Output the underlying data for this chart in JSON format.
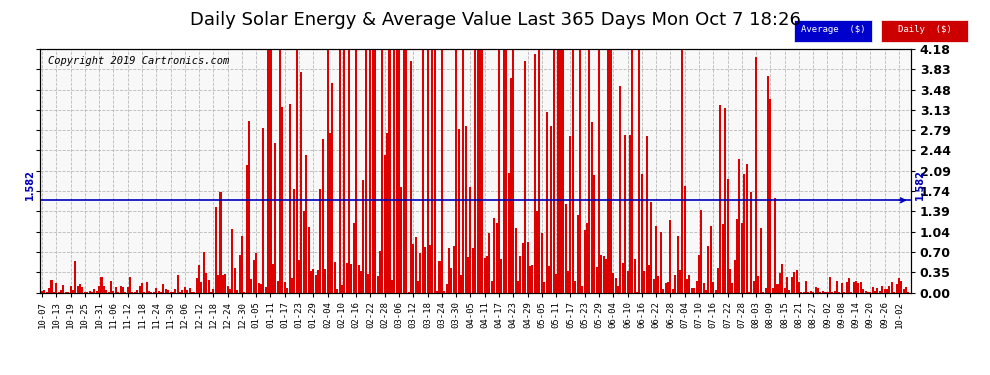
{
  "title": "Daily Solar Energy & Average Value Last 365 Days Mon Oct 7 18:26",
  "copyright": "Copyright 2019 Cartronics.com",
  "average_value": 1.582,
  "ylim": [
    0.0,
    4.18
  ],
  "yticks": [
    0.0,
    0.35,
    0.7,
    1.04,
    1.39,
    1.74,
    2.09,
    2.44,
    2.79,
    3.13,
    3.48,
    3.83,
    4.18
  ],
  "bar_color": "#dd0000",
  "avg_line_color": "#0000bb",
  "bg_color": "#ffffff",
  "plot_bg_color": "#f8f8f8",
  "grid_color": "#aaaaaa",
  "legend_avg_bg": "#0000cc",
  "legend_daily_bg": "#cc0000",
  "title_fontsize": 13,
  "copyright_fontsize": 7.5,
  "bar_width": 0.85,
  "xtick_labels": [
    "10-07",
    "10-13",
    "10-19",
    "10-25",
    "10-31",
    "11-06",
    "11-12",
    "11-18",
    "11-24",
    "11-30",
    "12-06",
    "12-12",
    "12-18",
    "12-24",
    "12-30",
    "01-05",
    "01-11",
    "01-17",
    "01-23",
    "01-29",
    "02-04",
    "02-10",
    "02-16",
    "02-22",
    "02-28",
    "03-06",
    "03-12",
    "03-18",
    "03-24",
    "03-30",
    "04-05",
    "04-11",
    "04-17",
    "04-23",
    "04-29",
    "05-05",
    "05-11",
    "05-17",
    "05-23",
    "05-29",
    "06-04",
    "06-10",
    "06-16",
    "06-22",
    "06-28",
    "07-04",
    "07-10",
    "07-16",
    "07-22",
    "07-28",
    "08-03",
    "08-09",
    "08-15",
    "08-21",
    "08-27",
    "09-02",
    "09-08",
    "09-14",
    "09-20",
    "09-26",
    "10-02"
  ],
  "n_bars": 365
}
